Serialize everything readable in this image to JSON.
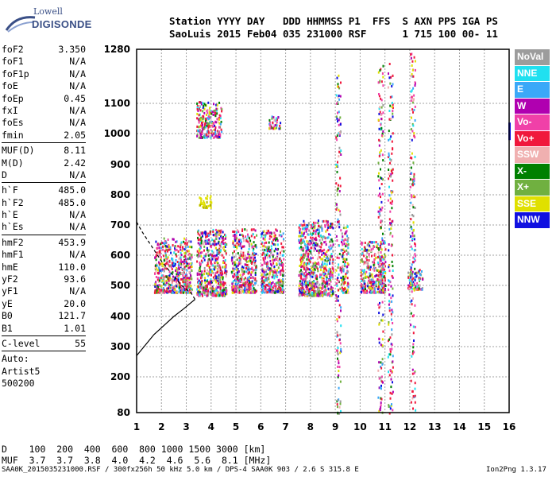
{
  "logo": {
    "line1": "Lowell",
    "line2": "DIGISONDE"
  },
  "header": {
    "line1": "Station YYYY DAY   DDD HHMMSS P1  FFS  S AXN PPS IGA PS",
    "line2": "SaoLuis 2015 Feb04 035 231000 RSF      1 715 100 00- 11"
  },
  "params": {
    "g1": [
      [
        "foF2",
        "3.350"
      ],
      [
        "foF1",
        "N/A"
      ],
      [
        "foF1p",
        "N/A"
      ],
      [
        "foE",
        "N/A"
      ],
      [
        "foEp",
        "0.45"
      ],
      [
        "fxI",
        "N/A"
      ],
      [
        "foEs",
        "N/A"
      ],
      [
        "fmin",
        "2.05"
      ]
    ],
    "g2": [
      [
        "MUF(D)",
        "8.11"
      ],
      [
        "M(D)",
        "2.42"
      ],
      [
        "D",
        "N/A"
      ]
    ],
    "g3": [
      [
        "h`F",
        "485.0"
      ],
      [
        "h`F2",
        "485.0"
      ],
      [
        "h`E",
        "N/A"
      ],
      [
        "h`Es",
        "N/A"
      ]
    ],
    "g4": [
      [
        "hmF2",
        "453.9"
      ],
      [
        "hmF1",
        "N/A"
      ],
      [
        "hmE",
        "110.0"
      ],
      [
        "yF2",
        "93.6"
      ],
      [
        "yF1",
        "N/A"
      ],
      [
        "yE",
        "20.0"
      ],
      [
        "B0",
        "121.7"
      ],
      [
        "B1",
        "1.01"
      ]
    ],
    "g5": [
      [
        "C-level",
        "55"
      ]
    ],
    "g6": [
      "Auto:",
      "Artist5",
      "500200"
    ]
  },
  "legend": [
    {
      "label": "NoVal",
      "color": "#9c9c9c"
    },
    {
      "label": "NNE",
      "color": "#20e0f0"
    },
    {
      "label": "E",
      "color": "#3aa8f8"
    },
    {
      "label": "W",
      "color": "#b000b0"
    },
    {
      "label": "Vo-",
      "color": "#f040a8"
    },
    {
      "label": "Vo+",
      "color": "#f0183c"
    },
    {
      "label": "SSW",
      "color": "#f0b0b0"
    },
    {
      "label": "X-",
      "color": "#008000"
    },
    {
      "label": "X+",
      "color": "#70b040"
    },
    {
      "label": "SSE",
      "color": "#e0e000"
    },
    {
      "label": "NNW",
      "color": "#1010e0"
    }
  ],
  "footer": {
    "d_row": "D    100  200  400  600  800 1000 1500 3000 [km]",
    "muf_row": "MUF  3.7  3.7  3.8  4.0  4.2  4.6  5.6  8.1 [MHz]",
    "info": "SAA0K_2015035231000.RSF / 300fx256h 50 kHz 5.0 km / DPS-4 SAA0K 903 / 2.6 S 315.8 E",
    "version": "Ion2Png 1.3.17"
  },
  "chart_data": {
    "type": "scatter",
    "x_ticks": [
      1,
      2,
      3,
      4,
      5,
      6,
      7,
      8,
      9,
      10,
      11,
      12,
      13,
      14,
      15,
      16
    ],
    "y_ticks": [
      80,
      200,
      300,
      400,
      500,
      600,
      700,
      800,
      900,
      1000,
      1100,
      1280
    ],
    "xlim": [
      1,
      16
    ],
    "ylim": [
      80,
      1280
    ],
    "grid": true,
    "legend_position": "right",
    "echo_bands": [
      {
        "x": [
          1.7,
          3.2
        ],
        "y": [
          480,
          660
        ]
      },
      {
        "x": [
          3.4,
          4.6
        ],
        "y": [
          470,
          690
        ]
      },
      {
        "x": [
          4.8,
          5.8
        ],
        "y": [
          480,
          690
        ]
      },
      {
        "x": [
          6.0,
          6.9
        ],
        "y": [
          480,
          690
        ]
      },
      {
        "x": [
          7.5,
          8.9
        ],
        "y": [
          470,
          720
        ]
      },
      {
        "x": [
          9.2,
          9.5
        ],
        "y": [
          480,
          700
        ]
      },
      {
        "x": [
          10.0,
          11.0
        ],
        "y": [
          480,
          650
        ]
      },
      {
        "x": [
          11.9,
          12.5
        ],
        "y": [
          490,
          560
        ]
      },
      {
        "x": [
          3.5,
          4.0
        ],
        "y": [
          760,
          800
        ]
      },
      {
        "x": [
          3.4,
          4.4
        ],
        "y": [
          990,
          1110
        ]
      },
      {
        "x": [
          6.3,
          6.8
        ],
        "y": [
          1020,
          1060
        ]
      },
      {
        "x": [
          9.0,
          9.2
        ],
        "y": [
          80,
          1200
        ]
      },
      {
        "x": [
          10.7,
          10.9
        ],
        "y": [
          80,
          1240
        ]
      },
      {
        "x": [
          11.1,
          11.3
        ],
        "y": [
          80,
          1240
        ]
      },
      {
        "x": [
          12.0,
          12.2
        ],
        "y": [
          80,
          1270
        ]
      }
    ],
    "profile_curve": [
      [
        1.0,
        270
      ],
      [
        1.3,
        300
      ],
      [
        1.7,
        340
      ],
      [
        2.1,
        370
      ],
      [
        2.5,
        400
      ],
      [
        2.9,
        425
      ],
      [
        3.2,
        445
      ],
      [
        3.35,
        455
      ],
      [
        3.2,
        475
      ],
      [
        2.8,
        500
      ],
      [
        2.4,
        540
      ],
      [
        2.0,
        580
      ],
      [
        1.6,
        630
      ],
      [
        1.2,
        680
      ],
      [
        1.0,
        710
      ]
    ]
  }
}
